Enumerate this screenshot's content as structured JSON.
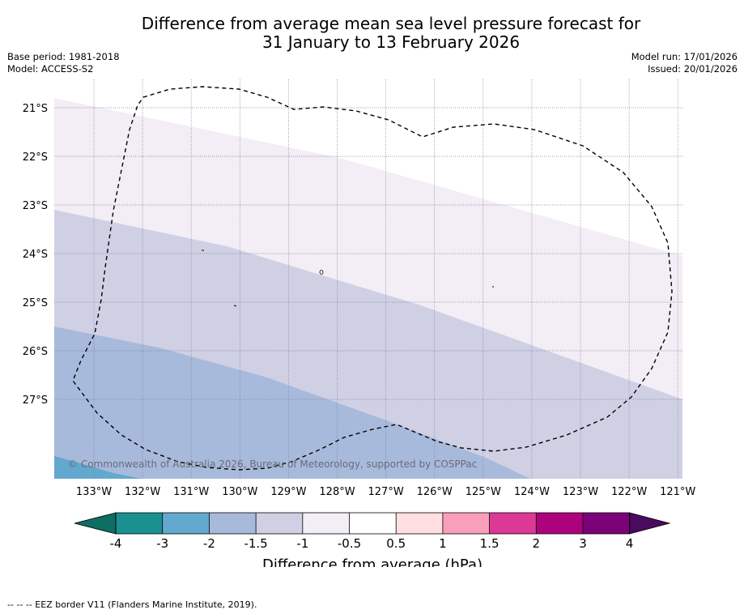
{
  "title_line1": "Difference from average mean sea level pressure forecast for",
  "title_line2": "31 January to 13 February 2026",
  "base_period": "Base period: 1981-2018",
  "model": "Model: ACCESS-S2",
  "model_run": "Model run: 17/01/2026",
  "issued": "Issued: 20/01/2026",
  "copyright": "© Commonwealth of Australia 2026, Bureau of Meteorology, supported by COSPPac",
  "lat_labels": [
    "21°S",
    "22°S",
    "23°S",
    "24°S",
    "25°S",
    "26°S",
    "27°S"
  ],
  "lon_labels": [
    "133°W",
    "132°W",
    "131°W",
    "130°W",
    "129°W",
    "128°W",
    "127°W",
    "126°W",
    "125°W",
    "124°W",
    "123°W",
    "122°W",
    "121°W"
  ],
  "colorbar": {
    "label": "Difference from average (hPa)",
    "ticks": [
      "-4",
      "-3",
      "-2",
      "-1.5",
      "-1",
      "-0.5",
      "0.5",
      "1",
      "1.5",
      "2",
      "3",
      "4"
    ],
    "under_color": "#0d6e63",
    "over_color": "#4a0a5e",
    "colors": [
      "#1a9190",
      "#63a8cf",
      "#a8badb",
      "#d0d0e5",
      "#f3edf5",
      "#ffffff",
      "#ffdfe0",
      "#f99fba",
      "#dc3896",
      "#ae017e",
      "#7a0177"
    ]
  },
  "legend_text": "--  --  -- EEZ border V11 (Flanders Marine Institute, 2019).",
  "fields": {
    "color_band1": "#f3edf5",
    "color_band2": "#d0d0e5",
    "color_band3": "#a8badb",
    "color_band4": "#63a8cf"
  }
}
